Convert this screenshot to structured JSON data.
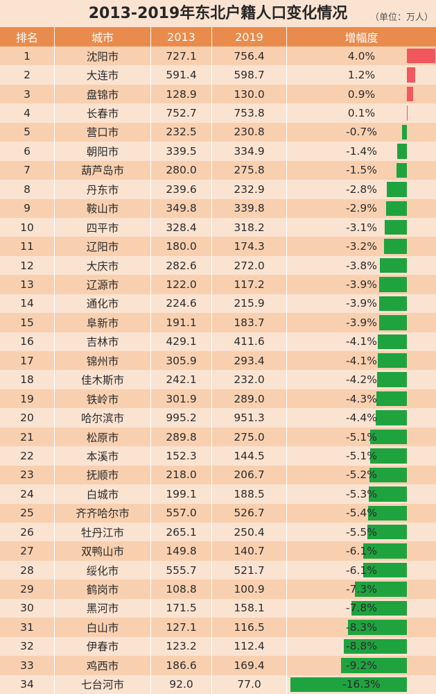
{
  "title": "2013-2019年东北户籍人口变化情况",
  "unit": "（单位：万人）",
  "colors": {
    "header_bg": "#e98b4c",
    "positive": "#f0585e",
    "negative": "#1fa33f",
    "row_a": "#f8d0b0",
    "row_b": "#fbe3d2"
  },
  "chart_data": {
    "type": "table",
    "title": "2013-2019年东北户籍人口变化情况",
    "unit": "（单位：万人）",
    "columns": [
      "排名",
      "城市",
      "2013",
      "2019",
      "增幅度"
    ],
    "rows": [
      {
        "rank": "1",
        "city": "沈阳市",
        "y2013": "727.1",
        "y2019": "756.4",
        "change": "4.0%",
        "value": 4.0
      },
      {
        "rank": "2",
        "city": "大连市",
        "y2013": "591.4",
        "y2019": "598.7",
        "change": "1.2%",
        "value": 1.2
      },
      {
        "rank": "3",
        "city": "盘锦市",
        "y2013": "128.9",
        "y2019": "130.0",
        "change": "0.9%",
        "value": 0.9
      },
      {
        "rank": "4",
        "city": "长春市",
        "y2013": "752.7",
        "y2019": "753.8",
        "change": "0.1%",
        "value": 0.1
      },
      {
        "rank": "5",
        "city": "营口市",
        "y2013": "232.5",
        "y2019": "230.8",
        "change": "-0.7%",
        "value": -0.7
      },
      {
        "rank": "6",
        "city": "朝阳市",
        "y2013": "339.5",
        "y2019": "334.9",
        "change": "-1.4%",
        "value": -1.4
      },
      {
        "rank": "7",
        "city": "葫芦岛市",
        "y2013": "280.0",
        "y2019": "275.8",
        "change": "-1.5%",
        "value": -1.5
      },
      {
        "rank": "8",
        "city": "丹东市",
        "y2013": "239.6",
        "y2019": "232.9",
        "change": "-2.8%",
        "value": -2.8
      },
      {
        "rank": "9",
        "city": "鞍山市",
        "y2013": "349.8",
        "y2019": "339.8",
        "change": "-2.9%",
        "value": -2.9
      },
      {
        "rank": "10",
        "city": "四平市",
        "y2013": "328.4",
        "y2019": "318.2",
        "change": "-3.1%",
        "value": -3.1
      },
      {
        "rank": "11",
        "city": "辽阳市",
        "y2013": "180.0",
        "y2019": "174.3",
        "change": "-3.2%",
        "value": -3.2
      },
      {
        "rank": "12",
        "city": "大庆市",
        "y2013": "282.6",
        "y2019": "272.0",
        "change": "-3.8%",
        "value": -3.8
      },
      {
        "rank": "13",
        "city": "辽源市",
        "y2013": "122.0",
        "y2019": "117.2",
        "change": "-3.9%",
        "value": -3.9
      },
      {
        "rank": "14",
        "city": "通化市",
        "y2013": "224.6",
        "y2019": "215.9",
        "change": "-3.9%",
        "value": -3.9
      },
      {
        "rank": "15",
        "city": "阜新市",
        "y2013": "191.1",
        "y2019": "183.7",
        "change": "-3.9%",
        "value": -3.9
      },
      {
        "rank": "16",
        "city": "吉林市",
        "y2013": "429.1",
        "y2019": "411.6",
        "change": "-4.1%",
        "value": -4.1
      },
      {
        "rank": "17",
        "city": "锦州市",
        "y2013": "305.9",
        "y2019": "293.4",
        "change": "-4.1%",
        "value": -4.1
      },
      {
        "rank": "18",
        "city": "佳木斯市",
        "y2013": "242.1",
        "y2019": "232.0",
        "change": "-4.2%",
        "value": -4.2
      },
      {
        "rank": "19",
        "city": "铁岭市",
        "y2013": "301.9",
        "y2019": "289.0",
        "change": "-4.3%",
        "value": -4.3
      },
      {
        "rank": "20",
        "city": "哈尔滨市",
        "y2013": "995.2",
        "y2019": "951.3",
        "change": "-4.4%",
        "value": -4.4
      },
      {
        "rank": "21",
        "city": "松原市",
        "y2013": "289.8",
        "y2019": "275.0",
        "change": "-5.1%",
        "value": -5.1
      },
      {
        "rank": "22",
        "city": "本溪市",
        "y2013": "152.3",
        "y2019": "144.5",
        "change": "-5.1%",
        "value": -5.1
      },
      {
        "rank": "23",
        "city": "抚顺市",
        "y2013": "218.0",
        "y2019": "206.7",
        "change": "-5.2%",
        "value": -5.2
      },
      {
        "rank": "24",
        "city": "白城市",
        "y2013": "199.1",
        "y2019": "188.5",
        "change": "-5.3%",
        "value": -5.3
      },
      {
        "rank": "25",
        "city": "齐齐哈尔市",
        "y2013": "557.0",
        "y2019": "526.7",
        "change": "-5.4%",
        "value": -5.4
      },
      {
        "rank": "26",
        "city": "牡丹江市",
        "y2013": "265.1",
        "y2019": "250.4",
        "change": "-5.5%",
        "value": -5.5
      },
      {
        "rank": "27",
        "city": "双鸭山市",
        "y2013": "149.8",
        "y2019": "140.7",
        "change": "-6.1%",
        "value": -6.1
      },
      {
        "rank": "28",
        "city": "绥化市",
        "y2013": "555.7",
        "y2019": "521.7",
        "change": "-6.1%",
        "value": -6.1
      },
      {
        "rank": "29",
        "city": "鹤岗市",
        "y2013": "108.8",
        "y2019": "100.9",
        "change": "-7.3%",
        "value": -7.3
      },
      {
        "rank": "30",
        "city": "黑河市",
        "y2013": "171.5",
        "y2019": "158.1",
        "change": "-7.8%",
        "value": -7.8
      },
      {
        "rank": "31",
        "city": "白山市",
        "y2013": "127.1",
        "y2019": "116.5",
        "change": "-8.3%",
        "value": -8.3
      },
      {
        "rank": "32",
        "city": "伊春市",
        "y2013": "123.2",
        "y2019": "112.4",
        "change": "-8.8%",
        "value": -8.8
      },
      {
        "rank": "33",
        "city": "鸡西市",
        "y2013": "186.6",
        "y2019": "169.4",
        "change": "-9.2%",
        "value": -9.2
      },
      {
        "rank": "34",
        "city": "七台河市",
        "y2013": "92.0",
        "y2019": "77.0",
        "change": "-16.3%",
        "value": -16.3
      }
    ]
  }
}
